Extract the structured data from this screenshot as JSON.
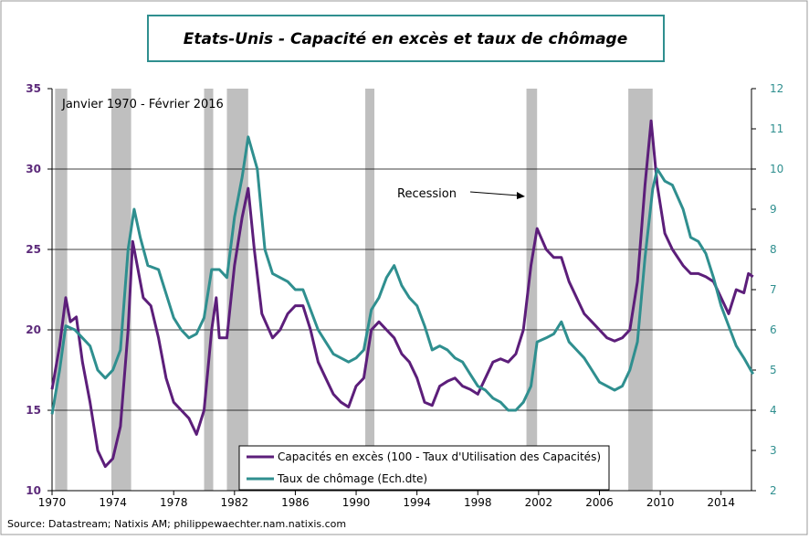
{
  "chart_data": {
    "type": "line",
    "title": "Etats-Unis - Capacité en excès et taux de chômage",
    "subtitle": "Janvier 1970 - Février 2016",
    "annotation": "Recession",
    "source": "Source: Datastream; Natixis AM; philippewaechter.nam.natixis.com",
    "xlim": [
      1970,
      2016
    ],
    "xticks": [
      1970,
      1974,
      1978,
      1982,
      1986,
      1990,
      1994,
      1998,
      2002,
      2006,
      2010,
      2014
    ],
    "ylim": [
      10,
      35
    ],
    "yticks": [
      10,
      15,
      20,
      25,
      30,
      35
    ],
    "y2lim": [
      2,
      12
    ],
    "y2ticks": [
      2,
      3,
      4,
      5,
      6,
      7,
      8,
      9,
      10,
      11,
      12
    ],
    "grid": true,
    "recession_color": "#bfbfbf",
    "recessions": [
      [
        1970.2,
        1971.0
      ],
      [
        1973.9,
        1975.2
      ],
      [
        1980.0,
        1980.6
      ],
      [
        1981.5,
        1982.9
      ],
      [
        1990.6,
        1991.2
      ],
      [
        2001.2,
        2001.9
      ],
      [
        2007.9,
        2009.5
      ]
    ],
    "series": [
      {
        "name": "Capacités en excès (100 - Taux d'Utilisation des Capacités)",
        "color": "#5c1e7a",
        "x": [
          1970.0,
          1970.5,
          1970.9,
          1971.2,
          1971.6,
          1972.0,
          1972.5,
          1973.0,
          1973.5,
          1974.0,
          1974.5,
          1975.0,
          1975.3,
          1975.6,
          1976.0,
          1976.5,
          1977.0,
          1977.5,
          1978.0,
          1978.5,
          1979.0,
          1979.5,
          1980.0,
          1980.5,
          1980.8,
          1981.0,
          1981.5,
          1982.0,
          1982.5,
          1982.9,
          1983.3,
          1983.8,
          1984.5,
          1985.0,
          1985.5,
          1986.0,
          1986.5,
          1987.0,
          1987.5,
          1988.0,
          1988.5,
          1989.0,
          1989.5,
          1990.0,
          1990.5,
          1991.0,
          1991.5,
          1992.0,
          1992.5,
          1993.0,
          1993.5,
          1994.0,
          1994.5,
          1995.0,
          1995.5,
          1996.0,
          1996.5,
          1997.0,
          1997.5,
          1998.0,
          1998.5,
          1999.0,
          1999.5,
          2000.0,
          2000.5,
          2001.0,
          2001.5,
          2001.9,
          2002.5,
          2003.0,
          2003.5,
          2004.0,
          2004.5,
          2005.0,
          2005.5,
          2006.0,
          2006.5,
          2007.0,
          2007.5,
          2008.0,
          2008.5,
          2009.0,
          2009.4,
          2009.8,
          2010.3,
          2010.8,
          2011.5,
          2012.0,
          2012.5,
          2013.0,
          2013.5,
          2014.0,
          2014.5,
          2015.0,
          2015.5,
          2015.8,
          2016.1
        ],
        "values": [
          16.3,
          19,
          22,
          20.5,
          20.8,
          18,
          15.5,
          12.5,
          11.5,
          12,
          14,
          20,
          25.5,
          24,
          22,
          21.5,
          19.5,
          17,
          15.5,
          15,
          14.5,
          13.5,
          15,
          20,
          22,
          19.5,
          19.5,
          24,
          27,
          28.8,
          25,
          21,
          19.5,
          20,
          21,
          21.5,
          21.5,
          20,
          18,
          17,
          16,
          15.5,
          15.2,
          16.5,
          17,
          20,
          20.5,
          20,
          19.5,
          18.5,
          18,
          17,
          15.5,
          15.3,
          16.5,
          16.8,
          17,
          16.5,
          16.3,
          16,
          17,
          18,
          18.2,
          18,
          18.5,
          20,
          24,
          26.3,
          25,
          24.5,
          24.5,
          23,
          22,
          21,
          20.5,
          20,
          19.5,
          19.3,
          19.5,
          20,
          23,
          29,
          33,
          29,
          26,
          25,
          24,
          23.5,
          23.5,
          23.3,
          23,
          22,
          21,
          22.5,
          22.3,
          23.5,
          23.3
        ]
      },
      {
        "name": "Taux de chômage (Ech.dte)",
        "color": "#2f8f8f",
        "axis": "y2",
        "x": [
          1970.0,
          1970.5,
          1970.9,
          1971.5,
          1972.0,
          1972.5,
          1973.0,
          1973.5,
          1974.0,
          1974.5,
          1975.0,
          1975.4,
          1975.8,
          1976.3,
          1977.0,
          1977.5,
          1978.0,
          1978.5,
          1979.0,
          1979.5,
          1980.0,
          1980.5,
          1981.0,
          1981.5,
          1982.0,
          1982.5,
          1982.9,
          1983.5,
          1984.0,
          1984.5,
          1985.0,
          1985.5,
          1986.0,
          1986.5,
          1987.0,
          1987.5,
          1988.0,
          1988.5,
          1989.0,
          1989.5,
          1990.0,
          1990.5,
          1991.0,
          1991.5,
          1992.0,
          1992.5,
          1993.0,
          1993.5,
          1994.0,
          1994.5,
          1995.0,
          1995.5,
          1996.0,
          1996.5,
          1997.0,
          1997.5,
          1998.0,
          1998.5,
          1999.0,
          1999.5,
          2000.0,
          2000.5,
          2001.0,
          2001.5,
          2001.9,
          2002.5,
          2003.0,
          2003.5,
          2004.0,
          2004.5,
          2005.0,
          2005.5,
          2006.0,
          2006.5,
          2007.0,
          2007.5,
          2008.0,
          2008.5,
          2009.0,
          2009.5,
          2009.8,
          2010.3,
          2010.8,
          2011.5,
          2012.0,
          2012.5,
          2013.0,
          2013.5,
          2014.0,
          2014.5,
          2015.0,
          2015.5,
          2016.1
        ],
        "values": [
          3.9,
          5,
          6.1,
          6,
          5.8,
          5.6,
          5,
          4.8,
          5,
          5.5,
          8,
          9,
          8.3,
          7.6,
          7.5,
          6.9,
          6.3,
          6,
          5.8,
          5.9,
          6.3,
          7.5,
          7.5,
          7.3,
          8.8,
          9.8,
          10.8,
          10,
          8,
          7.4,
          7.3,
          7.2,
          7,
          7,
          6.5,
          6,
          5.7,
          5.4,
          5.3,
          5.2,
          5.3,
          5.5,
          6.5,
          6.8,
          7.3,
          7.6,
          7.1,
          6.8,
          6.6,
          6.1,
          5.5,
          5.6,
          5.5,
          5.3,
          5.2,
          4.9,
          4.6,
          4.5,
          4.3,
          4.2,
          4,
          4,
          4.2,
          4.6,
          5.7,
          5.8,
          5.9,
          6.2,
          5.7,
          5.5,
          5.3,
          5,
          4.7,
          4.6,
          4.5,
          4.6,
          5,
          5.7,
          7.8,
          9.5,
          10,
          9.7,
          9.6,
          9,
          8.3,
          8.2,
          7.9,
          7.3,
          6.6,
          6.1,
          5.6,
          5.3,
          4.9
        ]
      }
    ]
  }
}
